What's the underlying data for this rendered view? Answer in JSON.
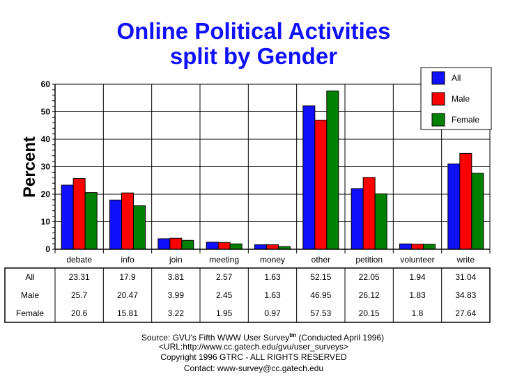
{
  "chart_data": {
    "type": "bar",
    "title": [
      "Online Political Activities",
      "split by Gender"
    ],
    "xlabel": "",
    "ylabel": "Percent",
    "ylim": [
      0,
      60
    ],
    "yticks": [
      "0",
      "10",
      "20",
      "30",
      "40",
      "50",
      "60"
    ],
    "grid": true,
    "legend_position": "top-right",
    "categories": [
      "debate",
      "info",
      "join",
      "meeting",
      "money",
      "other",
      "petition",
      "volunteer",
      "write"
    ],
    "series": [
      {
        "name": "All",
        "color": "#1010ff",
        "values": [
          23.31,
          17.9,
          3.81,
          2.57,
          1.63,
          52.15,
          22.05,
          1.94,
          31.04
        ],
        "labels": [
          "23.31",
          "17.9",
          "3.81",
          "2.57",
          "1.63",
          "52.15",
          "22.05",
          "1.94",
          "31.04"
        ]
      },
      {
        "name": "Male",
        "color": "#ff0000",
        "values": [
          25.7,
          20.47,
          3.99,
          2.45,
          1.63,
          46.95,
          26.12,
          1.83,
          34.83
        ],
        "labels": [
          "25.7",
          "20.47",
          "3.99",
          "2.45",
          "1.63",
          "46.95",
          "26.12",
          "1.83",
          "34.83"
        ]
      },
      {
        "name": "Female",
        "color": "#008000",
        "values": [
          20.6,
          15.81,
          3.22,
          1.95,
          0.97,
          57.53,
          20.15,
          1.8,
          27.64
        ],
        "labels": [
          "20.6",
          "15.81",
          "3.22",
          "1.95",
          "0.97",
          "57.53",
          "20.15",
          "1.8",
          "27.64"
        ]
      }
    ]
  },
  "footer": {
    "source": "Source: GVU's Fifth WWW User Survey",
    "tm": "tm",
    "conducted": " (Conducted April 1996)",
    "url": "<URL:http://www.cc.gatech.edu/gvu/user_surveys>",
    "copyright": "Copyright 1996 GTRC -  ALL RIGHTS RESERVED",
    "contact": "Contact: www-survey@cc.gatech.edu"
  }
}
